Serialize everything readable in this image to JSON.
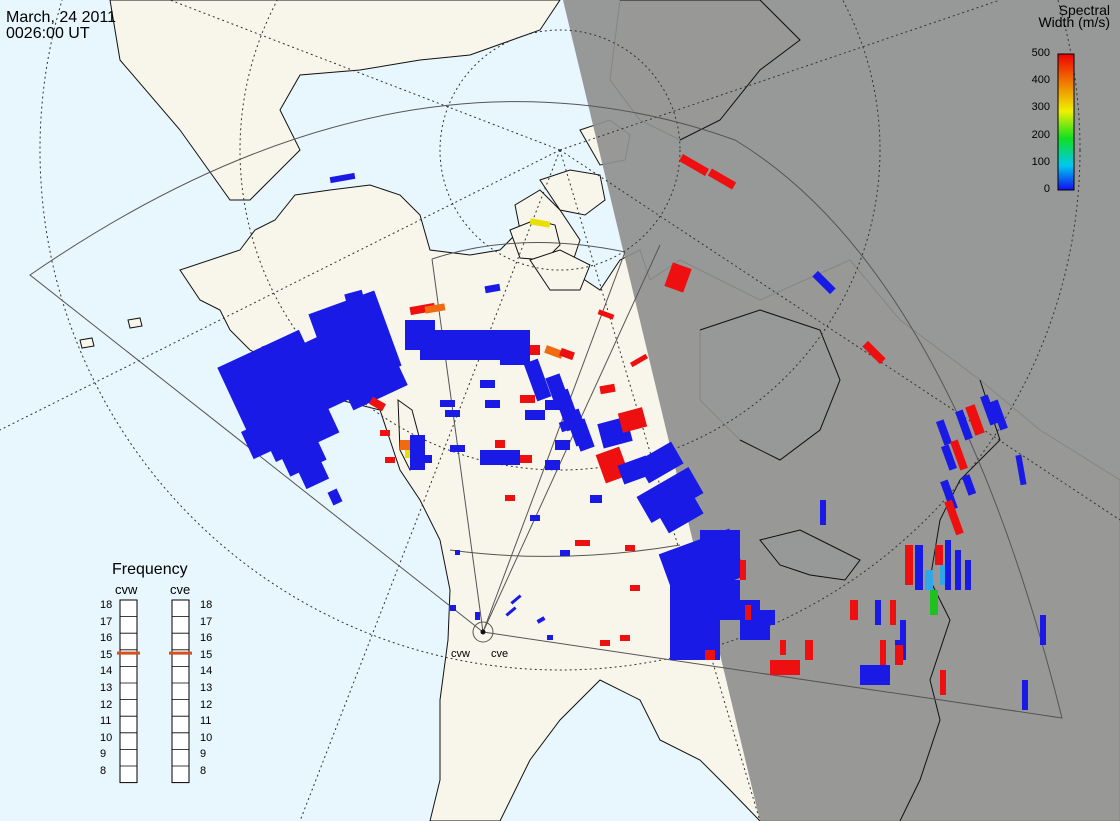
{
  "header": {
    "date": "March, 24 2011",
    "time": "0026:00 UT"
  },
  "colorbar": {
    "title_line1": "Spectral",
    "title_line2": "Width (m/s)",
    "ticks": [
      "500",
      "400",
      "300",
      "200",
      "100",
      "0"
    ],
    "range": [
      0,
      500
    ]
  },
  "stations": {
    "west": "cvw",
    "east": "cve"
  },
  "frequency": {
    "title": "Frequency",
    "west_label": "cvw",
    "east_label": "cve",
    "ticks": [
      "18",
      "17",
      "16",
      "15",
      "14",
      "13",
      "12",
      "11",
      "10",
      "9",
      "8"
    ],
    "cvw_value": 15.3,
    "cve_value": 15.3
  },
  "colors": {
    "ocean": "#e8f6fd",
    "land": "#f8f6ea",
    "night": "#8f8f8f",
    "coast": "#111111",
    "grid": "#333333",
    "low_width": "#1a1ae6",
    "high_width": "#ee1010",
    "mid_width": "#f06a10",
    "freq_marker": "#d45020"
  },
  "echo_colors": [
    "low_width",
    "high_width",
    "mid_width",
    "#e8e000",
    "#30a8e8",
    "#20c020"
  ]
}
